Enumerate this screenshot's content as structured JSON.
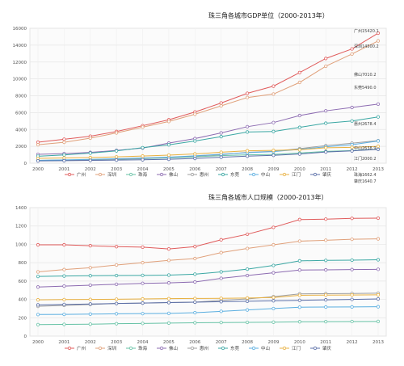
{
  "chart_data": [
    {
      "type": "line",
      "title": "珠三角各城市GDP单位（2000-2013年）",
      "categories": [
        "2000",
        "2001",
        "2002",
        "2003",
        "2004",
        "2005",
        "2006",
        "2007",
        "2008",
        "2009",
        "2010",
        "2011",
        "2012",
        "2013"
      ],
      "ylim": [
        0,
        16000
      ],
      "yticks": [
        "0",
        "2000",
        "4000",
        "6000",
        "8000",
        "10000",
        "12000",
        "14000",
        "16000"
      ],
      "grid": true,
      "legend_position": "bottom",
      "series": [
        {
          "name": "广州",
          "color": "#e05b5b",
          "values": [
            2490,
            2840,
            3200,
            3760,
            4450,
            5150,
            6070,
            7140,
            8290,
            9140,
            10750,
            12420,
            13550,
            15420
          ]
        },
        {
          "name": "深圳",
          "color": "#e0a07a",
          "values": [
            2190,
            2480,
            2970,
            3590,
            4280,
            4950,
            5810,
            6800,
            7790,
            8200,
            9580,
            11500,
            12950,
            14500
          ]
        },
        {
          "name": "珠海",
          "color": "#66c2a5",
          "values": [
            330,
            370,
            410,
            470,
            540,
            640,
            760,
            900,
            990,
            1040,
            1210,
            1400,
            1500,
            1662
          ]
        },
        {
          "name": "佛山",
          "color": "#8c6bb1",
          "values": [
            1050,
            1140,
            1280,
            1520,
            1800,
            2380,
            2920,
            3590,
            4330,
            4820,
            5650,
            6210,
            6610,
            7010
          ]
        },
        {
          "name": "惠州",
          "color": "#9e9e9e",
          "values": [
            320,
            360,
            410,
            490,
            580,
            700,
            840,
            1010,
            1290,
            1410,
            1730,
            2090,
            2370,
            2678
          ]
        },
        {
          "name": "东莞",
          "color": "#3aa7a3",
          "values": [
            830,
            980,
            1200,
            1460,
            1840,
            2180,
            2630,
            3150,
            3700,
            3760,
            4250,
            4740,
            5010,
            5490
          ]
        },
        {
          "name": "中山",
          "color": "#5aaee0",
          "values": [
            340,
            390,
            450,
            530,
            620,
            720,
            880,
            1060,
            1250,
            1380,
            1640,
            1950,
            2190,
            2638
          ]
        },
        {
          "name": "江门",
          "color": "#e8b040",
          "values": [
            570,
            620,
            670,
            750,
            850,
            960,
            1100,
            1300,
            1470,
            1520,
            1590,
            1830,
            1880,
            2000
          ]
        },
        {
          "name": "肇庆",
          "color": "#5b6fa8",
          "values": [
            270,
            300,
            330,
            370,
            410,
            470,
            560,
            710,
            840,
            930,
            1090,
            1330,
            1460,
            1640
          ]
        }
      ],
      "end_labels": [
        "广州15420.1",
        "深圳14500.2",
        "佛山7010.2",
        "东莞5490.0",
        "惠州2678.4",
        "中山2638.9",
        "江门2000.2",
        "珠海1662.4",
        "肇庆1640.7"
      ]
    },
    {
      "type": "line",
      "title": "珠三角各城市人口规模（2000-2013年）",
      "categories": [
        "2000",
        "2001",
        "2002",
        "2003",
        "2004",
        "2005",
        "2006",
        "2007",
        "2008",
        "2009",
        "2010",
        "2011",
        "2012",
        "2013"
      ],
      "ylim": [
        0,
        1400
      ],
      "yticks": [
        "0",
        "200",
        "400",
        "600",
        "800",
        "1000",
        "1200",
        "1400"
      ],
      "grid": true,
      "legend_position": "bottom",
      "series": [
        {
          "name": "广州",
          "color": "#e05b5b",
          "values": [
            995,
            995,
            985,
            975,
            970,
            950,
            975,
            1050,
            1110,
            1185,
            1270,
            1275,
            1283,
            1285
          ]
        },
        {
          "name": "深圳",
          "color": "#e0a07a",
          "values": [
            700,
            725,
            745,
            775,
            800,
            825,
            845,
            910,
            955,
            995,
            1035,
            1045,
            1055,
            1060
          ]
        },
        {
          "name": "珠海",
          "color": "#66c2a5",
          "values": [
            125,
            128,
            130,
            135,
            138,
            142,
            145,
            148,
            150,
            152,
            156,
            157,
            159,
            160
          ]
        },
        {
          "name": "佛山",
          "color": "#8c6bb1",
          "values": [
            535,
            545,
            555,
            565,
            575,
            580,
            590,
            630,
            660,
            690,
            720,
            722,
            725,
            728
          ]
        },
        {
          "name": "惠州",
          "color": "#9e9e9e",
          "values": [
            325,
            335,
            345,
            355,
            360,
            365,
            370,
            390,
            405,
            430,
            460,
            462,
            465,
            468
          ]
        },
        {
          "name": "东莞",
          "color": "#3aa7a3",
          "values": [
            650,
            655,
            658,
            660,
            662,
            665,
            675,
            700,
            730,
            770,
            820,
            825,
            828,
            832
          ]
        },
        {
          "name": "中山",
          "color": "#5aaee0",
          "values": [
            235,
            237,
            240,
            243,
            245,
            248,
            255,
            270,
            285,
            300,
            315,
            317,
            318,
            320
          ]
        },
        {
          "name": "江门",
          "color": "#e8b040",
          "values": [
            395,
            398,
            400,
            402,
            405,
            408,
            410,
            412,
            415,
            420,
            445,
            447,
            448,
            450
          ]
        },
        {
          "name": "肇庆",
          "color": "#5b6fa8",
          "values": [
            340,
            345,
            350,
            355,
            360,
            365,
            370,
            375,
            380,
            385,
            390,
            395,
            400,
            405
          ]
        }
      ]
    }
  ]
}
